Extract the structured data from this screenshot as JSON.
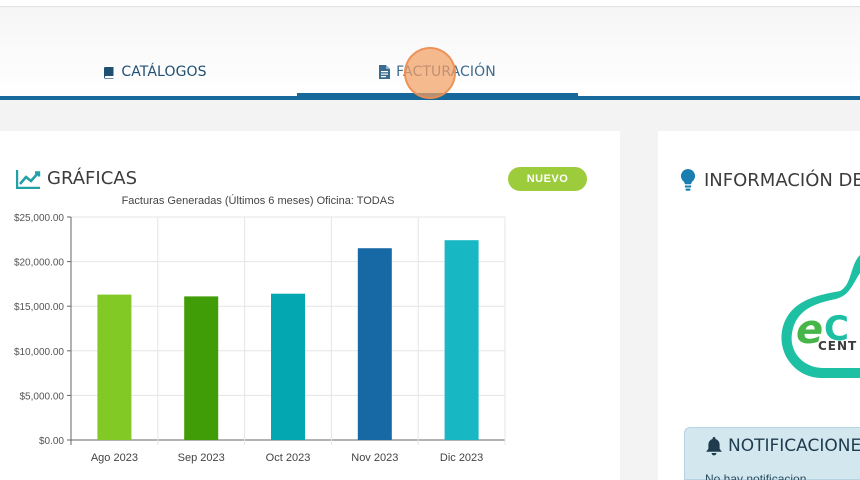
{
  "tabs": [
    {
      "label": "CATÁLOGOS",
      "icon": "book-icon"
    },
    {
      "label": "FACTURACIÓN",
      "icon": "document-icon",
      "active": true
    }
  ],
  "graficas": {
    "title": "GRÁFICAS",
    "icon": "area-chart-icon",
    "badge": "NUEVO"
  },
  "info": {
    "title": "INFORMACIÓN DE",
    "icon": "lightbulb-icon",
    "logo_text": "CENT",
    "logo_letters": "eC"
  },
  "notificaciones": {
    "title": "NOTIFICACIONES",
    "icon": "bell-icon",
    "body": "No hay notificacion"
  },
  "colors": {
    "accent": "#17699b",
    "badge": "#9ccc3c",
    "bars": [
      "#82c926",
      "#409c07",
      "#02a7b1",
      "#1769a6",
      "#17b8c4"
    ]
  },
  "chart_data": {
    "type": "bar",
    "title": "Facturas Generadas (Últimos 6 meses) Oficina: TODAS",
    "categories": [
      "Ago 2023",
      "Sep 2023",
      "Oct 2023",
      "Nov 2023",
      "Dic 2023"
    ],
    "values": [
      16300,
      16100,
      16400,
      21500,
      22400
    ],
    "yticks": [
      "$0.00",
      "$5,000.00",
      "$10,000.00",
      "$15,000.00",
      "$20,000.00",
      "$25,000.00"
    ],
    "ylim": [
      0,
      25000
    ],
    "grid": true,
    "xlabel": "",
    "ylabel": ""
  }
}
